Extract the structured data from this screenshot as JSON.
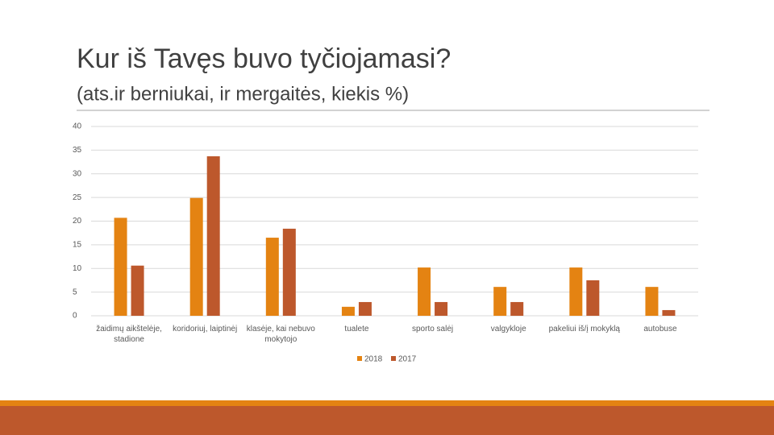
{
  "chart_data": {
    "type": "bar",
    "title": "Kur iš Tavęs buvo tyčiojamasi?",
    "subtitle": "(ats.ir berniukai, ir mergaitės, kiekis %)",
    "categories": [
      "žaidimų aikštelėje, stadione",
      "koridoriuj, laiptinėj",
      "klasėje, kai nebuvo mokytojo",
      "tualete",
      "sporto salėj",
      "valgykloje",
      "pakeliui iš/į mokyklą",
      "autobuse"
    ],
    "series": [
      {
        "name": "2018",
        "color": "#e48312",
        "values": [
          20.7,
          24.9,
          16.5,
          1.9,
          10.2,
          6.1,
          10.2,
          6.1
        ]
      },
      {
        "name": "2017",
        "color": "#bd582c",
        "values": [
          10.6,
          33.7,
          18.4,
          2.9,
          2.9,
          2.9,
          7.5,
          1.2
        ]
      }
    ],
    "ylim": [
      0,
      40
    ],
    "yticks": [
      0,
      5,
      10,
      15,
      20,
      25,
      30,
      35,
      40
    ],
    "grid": true,
    "legend": "bottom"
  }
}
